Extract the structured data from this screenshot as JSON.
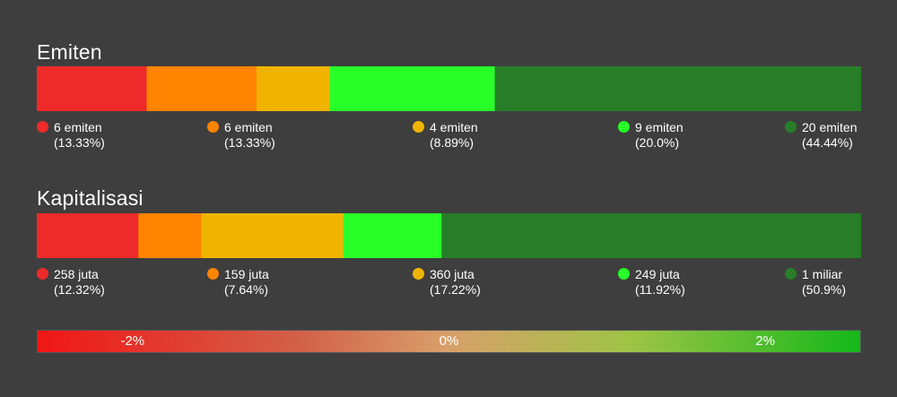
{
  "chart_data": [
    {
      "type": "bar",
      "title": "Emiten",
      "orientation": "horizontal-stacked",
      "colors": [
        "#ee2a2a",
        "#ff8400",
        "#f0b400",
        "#28ff28",
        "#287e28"
      ],
      "segments": [
        {
          "label": "6 emiten",
          "pct": "(13.33%)",
          "value": 13.33
        },
        {
          "label": "6 emiten",
          "pct": "(13.33%)",
          "value": 13.33
        },
        {
          "label": "4 emiten",
          "pct": "(8.89%)",
          "value": 8.89
        },
        {
          "label": "9 emiten",
          "pct": "(20.0%)",
          "value": 20.0
        },
        {
          "label": "20 emiten",
          "pct": "(44.44%)",
          "value": 44.44
        }
      ]
    },
    {
      "type": "bar",
      "title": "Kapitalisasi",
      "orientation": "horizontal-stacked",
      "colors": [
        "#ee2a2a",
        "#ff8400",
        "#f0b400",
        "#28ff28",
        "#287e28"
      ],
      "segments": [
        {
          "label": "258 juta",
          "pct": "(12.32%)",
          "value": 12.32
        },
        {
          "label": "159 juta",
          "pct": "(7.64%)",
          "value": 7.64
        },
        {
          "label": "360 juta",
          "pct": "(17.22%)",
          "value": 17.22
        },
        {
          "label": "249 juta",
          "pct": "(11.92%)",
          "value": 11.92
        },
        {
          "label": "1 miliar",
          "pct": "(50.9%)",
          "value": 50.9
        }
      ]
    }
  ],
  "scale": {
    "labels": [
      "-2%",
      "0%",
      "2%"
    ],
    "values": [
      -2,
      0,
      2
    ],
    "range": [
      -2.6,
      2.6
    ]
  }
}
